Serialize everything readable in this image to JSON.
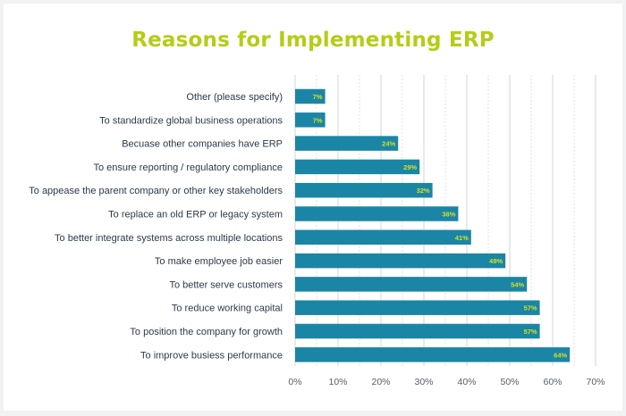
{
  "chart_data": {
    "type": "bar",
    "orientation": "horizontal",
    "title": "Reasons for Implementing ERP",
    "categories": [
      "Other (please specify)",
      "To standardize global business operations",
      "Becuase other companies have ERP",
      "To ensure reporting / regulatory compliance",
      "To appease the parent company or other key stakeholders",
      "To replace an old ERP or legacy system",
      "To better integrate systems across multiple locations",
      "To make employee job easier",
      "To better serve customers",
      "To reduce working capital",
      "To position the company for growth",
      "To improve busiess performance"
    ],
    "values": [
      7,
      7,
      24,
      29,
      32,
      38,
      41,
      49,
      54,
      57,
      57,
      64
    ],
    "data_labels": [
      "7%",
      "7%",
      "24%",
      "29%",
      "32%",
      "38%",
      "41%",
      "49%",
      "54%",
      "57%",
      "57%",
      "64%"
    ],
    "xlim": [
      0,
      70
    ],
    "xticks": [
      0,
      10,
      20,
      30,
      40,
      50,
      60,
      70
    ],
    "xtick_labels": [
      "0%",
      "10%",
      "20%",
      "30%",
      "40%",
      "50%",
      "60%",
      "70%"
    ],
    "grid": true,
    "legend": "none",
    "colors": {
      "bar": "#1b85a6",
      "title": "#b5cc18",
      "data_label": "#d4e01f"
    }
  }
}
